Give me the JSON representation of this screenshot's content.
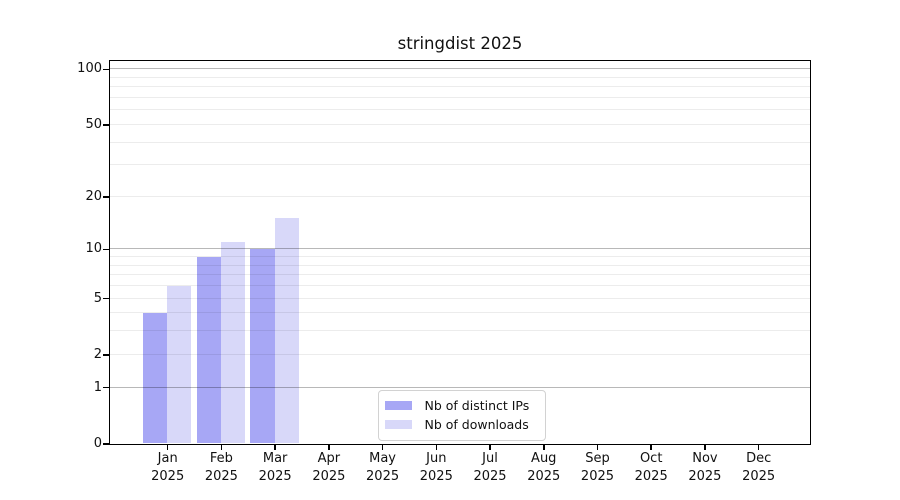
{
  "title": "stringdist 2025",
  "chart_data": {
    "type": "bar",
    "title": "stringdist 2025",
    "categories": [
      "Jan",
      "Feb",
      "Mar",
      "Apr",
      "May",
      "Jun",
      "Jul",
      "Aug",
      "Sep",
      "Oct",
      "Nov",
      "Dec"
    ],
    "category_year": "2025",
    "series": [
      {
        "name": "Nb of distinct IPs",
        "color": "#a7a7f5",
        "values": [
          4,
          9,
          10,
          null,
          null,
          null,
          null,
          null,
          null,
          null,
          null,
          null
        ]
      },
      {
        "name": "Nb of downloads",
        "color": "#d8d8f9",
        "values": [
          6,
          11,
          15,
          null,
          null,
          null,
          null,
          null,
          null,
          null,
          null,
          null
        ]
      }
    ],
    "yscale": "log1p",
    "ylim": [
      0,
      111
    ],
    "y_tick_labels": [
      0,
      1,
      2,
      5,
      10,
      20,
      50,
      100
    ],
    "y_major_grid": [
      1,
      10,
      100
    ],
    "y_minor_grid": [
      2,
      3,
      4,
      5,
      6,
      7,
      8,
      9,
      20,
      30,
      40,
      50,
      60,
      70,
      80,
      90
    ],
    "grid": true,
    "legend_position": "lower center"
  }
}
